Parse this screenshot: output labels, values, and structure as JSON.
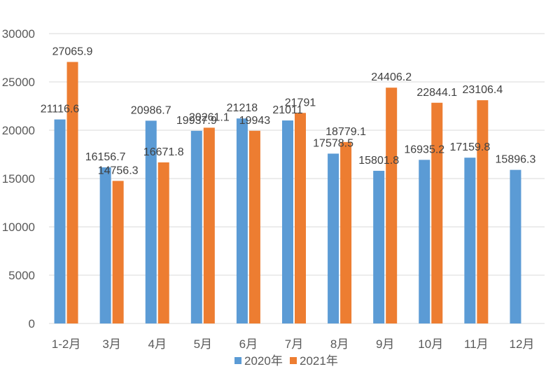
{
  "chart_data": {
    "type": "bar",
    "categories": [
      "1-2月",
      "3月",
      "4月",
      "5月",
      "6月",
      "7月",
      "8月",
      "9月",
      "10月",
      "11月",
      "12月"
    ],
    "series": [
      {
        "name": "2020年",
        "color": "#5b9bd5",
        "values": [
          21116.6,
          16156.7,
          20986.7,
          19937.9,
          21218,
          21011,
          17578.5,
          15801.8,
          16935.2,
          17159.8,
          15896.3
        ]
      },
      {
        "name": "2021年",
        "color": "#ed7d31",
        "values": [
          27065.9,
          14756.3,
          16671.8,
          20261.1,
          19943,
          21791,
          18779.1,
          24406.2,
          22844.1,
          23106.4,
          null
        ]
      }
    ],
    "data_labels": [
      [
        "21116.6",
        "16156.7",
        "20986.7",
        "19937.9",
        "21218",
        "21011",
        "17578.5",
        "15801.8",
        "16935.2",
        "17159.8",
        "15896.3"
      ],
      [
        "27065.9",
        "14756.3",
        "16671.8",
        "20261.1",
        "19943",
        "21791",
        "18779.1",
        "24406.2",
        "22844.1",
        "23106.4",
        null
      ]
    ],
    "ylim": [
      0,
      30000
    ],
    "yticks": [
      0,
      5000,
      10000,
      15000,
      20000,
      25000,
      30000
    ],
    "grid": true,
    "legend_position": "bottom"
  }
}
